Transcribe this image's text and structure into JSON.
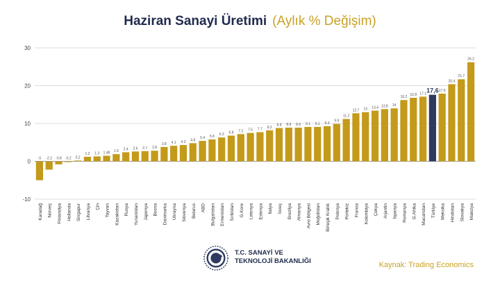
{
  "title": {
    "main": "Haziran Sanayi Üretimi",
    "sub": "(Aylık % Değişim)"
  },
  "ministry": {
    "line1": "T.C. SANAYİ VE",
    "line2": "TEKNOLOJİ BAKANLIĞI"
  },
  "source": "Kaynak: Trading Economics",
  "colors": {
    "bar": "#c49a1a",
    "highlight": "#2e3a5f",
    "title": "#1f2a4d",
    "accent": "#c9a227",
    "grid": "#dddddd"
  },
  "chart_data": {
    "type": "bar",
    "title": "Haziran Sanayi Üretimi (Aylık % Değişim)",
    "xlabel": "",
    "ylabel": "",
    "ylim": [
      -10,
      30
    ],
    "yticks": [
      -10,
      0,
      10,
      20,
      30
    ],
    "grid": true,
    "highlight": "Türkiye",
    "categories": [
      "Karadağ",
      "Norveç",
      "Finlandiya",
      "Hollanda",
      "Singapur",
      "Litvanya",
      "Çin",
      "Tayvan",
      "Kazakistan",
      "Rusya",
      "Yunanistan",
      "Japonya",
      "Bosna",
      "Danimarka",
      "Ukrayna",
      "Slovenya",
      "Belarus",
      "ABD",
      "Bulgaristan",
      "Ermenistan",
      "Sırbistan",
      "G.Kore",
      "Letonya",
      "Estonya",
      "İtalya",
      "İsveç",
      "Brezilya",
      "Almanya",
      "Avro Bölgesi",
      "Moğolistan",
      "Birleşik Krallık",
      "Polonya",
      "Portekiz",
      "Fransa",
      "Kolombiya",
      "Çekya",
      "Arjantin",
      "İspanya",
      "Romanya",
      "G.Afrika",
      "Macaristan",
      "Türkiye",
      "Meksika",
      "Hindistan",
      "Slovakya",
      "Malezya"
    ],
    "values": [
      -5,
      -2.2,
      -0.8,
      -0.2,
      0.2,
      1.2,
      1.3,
      1.48,
      1.9,
      2.4,
      2.6,
      2.7,
      2.8,
      3.8,
      4.1,
      4.3,
      4.8,
      5.4,
      5.8,
      6.3,
      6.8,
      7.2,
      7.5,
      7.7,
      8.2,
      8.8,
      8.9,
      8.9,
      9.1,
      9.1,
      9.3,
      9.9,
      11.2,
      12.7,
      13,
      13.4,
      13.8,
      14,
      16.2,
      16.8,
      17.1,
      17.6,
      17.9,
      20.4,
      21.7,
      26.2
    ],
    "labels": [
      "-5",
      "-2.2",
      "-0.8",
      "-0.2",
      "0.2",
      "1.2",
      "1.3",
      "1.48",
      "1.9",
      "2.4",
      "2.6",
      "2.7",
      "2.8",
      "3.8",
      "4.1",
      "4.3",
      "4.8",
      "5.4",
      "5.8",
      "6.3",
      "6.8",
      "7.2",
      "7.5",
      "7.7",
      "8.2",
      "8.8",
      "8.9",
      "8.9",
      "9.1",
      "9.1",
      "9.3",
      "9.9",
      "11.2",
      "12.7",
      "13",
      "13.4",
      "13.8",
      "14",
      "16.2",
      "16.8",
      "17.1",
      "17,6",
      "17.9",
      "20.4",
      "21.7",
      "26.2"
    ]
  }
}
